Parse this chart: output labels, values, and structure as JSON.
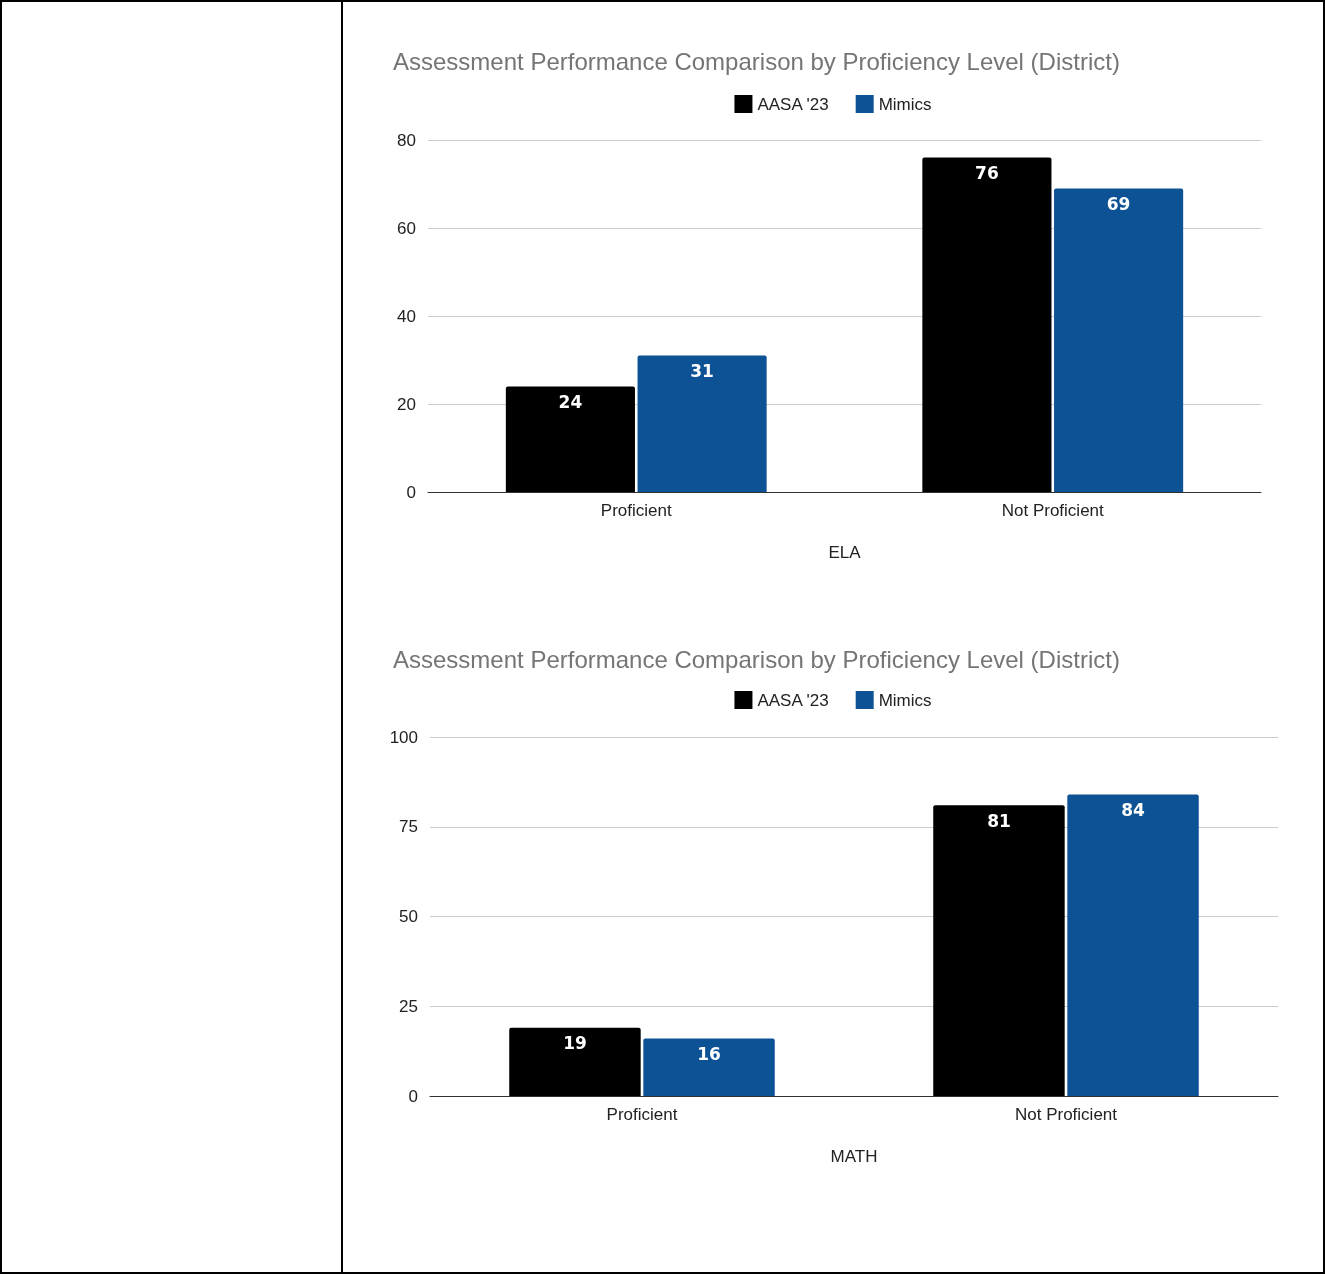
{
  "chart_data": [
    {
      "type": "bar",
      "title": "Assessment Performance Comparison by Proficiency Level (District)",
      "xlabel": "ELA",
      "categories": [
        "Proficient",
        "Not Proficient"
      ],
      "series": [
        {
          "name": "AASA '23",
          "color": "#000000",
          "values": [
            24,
            76
          ]
        },
        {
          "name": "Mimics",
          "color": "#0d5294",
          "values": [
            31,
            69
          ]
        }
      ],
      "ylim": [
        0,
        80
      ],
      "yticks": [
        0,
        20,
        40,
        60,
        80
      ],
      "grid": "y",
      "legend": "top",
      "data_labels": true
    },
    {
      "type": "bar",
      "title": "Assessment Performance Comparison by Proficiency Level (District)",
      "xlabel": "MATH",
      "categories": [
        "Proficient",
        "Not Proficient"
      ],
      "series": [
        {
          "name": "AASA '23",
          "color": "#000000",
          "values": [
            19,
            81
          ]
        },
        {
          "name": "Mimics",
          "color": "#0d5294",
          "values": [
            16,
            84
          ]
        }
      ],
      "ylim": [
        0,
        100
      ],
      "yticks": [
        0,
        25,
        50,
        75,
        100
      ],
      "grid": "y",
      "legend": "top",
      "data_labels": true
    }
  ]
}
